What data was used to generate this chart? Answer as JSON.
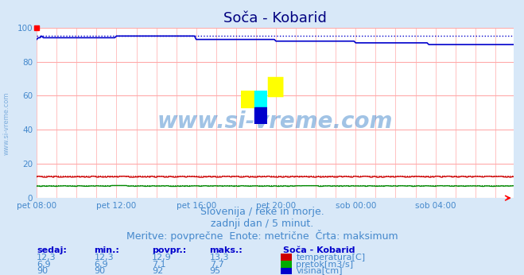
{
  "title": "Soča - Kobarid",
  "bg_color": "#d8e8f8",
  "plot_bg_color": "#ffffff",
  "grid_color_major": "#ffaaaa",
  "grid_color_minor": "#ffdddd",
  "xlim": [
    0,
    287
  ],
  "ylim": [
    0,
    100
  ],
  "yticks": [
    0,
    20,
    40,
    60,
    80,
    100
  ],
  "xtick_labels": [
    "pet 08:00",
    "pet 12:00",
    "pet 16:00",
    "pet 20:00",
    "sob 00:00",
    "sob 04:00"
  ],
  "xtick_positions": [
    0,
    48,
    96,
    144,
    192,
    240
  ],
  "title_color": "#000080",
  "title_fontsize": 13,
  "watermark_text": "www.si-vreme.com",
  "watermark_color": "#4488cc",
  "watermark_alpha": 0.5,
  "sub_text1": "Slovenija / reke in morje.",
  "sub_text2": "zadnji dan / 5 minut.",
  "sub_text3": "Meritve: povprečne  Enote: metrične  Črta: maksimum",
  "sub_text_color": "#4488cc",
  "sub_text_fontsize": 9,
  "legend_title": "Soča - Kobarid",
  "legend_items": [
    "temperatura[C]",
    "pretok[m3/s]",
    "višina[cm]"
  ],
  "legend_colors": [
    "#cc0000",
    "#00aa00",
    "#0000cc"
  ],
  "table_headers": [
    "sedaj:",
    "min.:",
    "povpr.:",
    "maks.:"
  ],
  "table_data": [
    [
      "12,3",
      "12,3",
      "12,9",
      "13,3"
    ],
    [
      "6,9",
      "6,9",
      "7,1",
      "7,7"
    ],
    [
      "90",
      "90",
      "92",
      "95"
    ]
  ],
  "temp_color": "#cc0000",
  "flow_color": "#008800",
  "height_color": "#0000cc",
  "temp_max_color": "#cc0000",
  "flow_max_color": "#008800",
  "height_max_color": "#0000cc",
  "n_points": 288,
  "temp_base": 12.3,
  "temp_max": 13.3,
  "flow_base": 6.9,
  "flow_max": 7.7,
  "height_profile": [
    93,
    94,
    94,
    95,
    94,
    94,
    94,
    94,
    94,
    94,
    94,
    94,
    94,
    94,
    94,
    94,
    94,
    94,
    94,
    94,
    94,
    94,
    94,
    94,
    94,
    94,
    94,
    94,
    94,
    94,
    94,
    94,
    94,
    94,
    94,
    94,
    94,
    94,
    94,
    94,
    94,
    94,
    94,
    94,
    94,
    94,
    94,
    94,
    95,
    95,
    95,
    95,
    95,
    95,
    95,
    95,
    95,
    95,
    95,
    95,
    95,
    95,
    95,
    95,
    95,
    95,
    95,
    95,
    95,
    95,
    95,
    95,
    95,
    95,
    95,
    95,
    95,
    95,
    95,
    95,
    95,
    95,
    95,
    95,
    95,
    95,
    95,
    95,
    95,
    95,
    95,
    95,
    95,
    95,
    95,
    95,
    93,
    93,
    93,
    93,
    93,
    93,
    93,
    93,
    93,
    93,
    93,
    93,
    93,
    93,
    93,
    93,
    93,
    93,
    93,
    93,
    93,
    93,
    93,
    93,
    93,
    93,
    93,
    93,
    93,
    93,
    93,
    93,
    93,
    93,
    93,
    93,
    93,
    93,
    93,
    93,
    93,
    93,
    93,
    93,
    93,
    93,
    93,
    93,
    92,
    92,
    92,
    92,
    92,
    92,
    92,
    92,
    92,
    92,
    92,
    92,
    92,
    92,
    92,
    92,
    92,
    92,
    92,
    92,
    92,
    92,
    92,
    92,
    92,
    92,
    92,
    92,
    92,
    92,
    92,
    92,
    92,
    92,
    92,
    92,
    92,
    92,
    92,
    92,
    92,
    92,
    92,
    92,
    92,
    92,
    92,
    92,
    91,
    91,
    91,
    91,
    91,
    91,
    91,
    91,
    91,
    91,
    91,
    91,
    91,
    91,
    91,
    91,
    91,
    91,
    91,
    91,
    91,
    91,
    91,
    91,
    91,
    91,
    91,
    91,
    91,
    91,
    91,
    91,
    91,
    91,
    91,
    91,
    91,
    91,
    91,
    91,
    91,
    91,
    91,
    91,
    90,
    90,
    90,
    90,
    90,
    90,
    90,
    90,
    90,
    90,
    90,
    90,
    90,
    90,
    90,
    90,
    90,
    90,
    90,
    90,
    90,
    90,
    90,
    90,
    90,
    90,
    90,
    90,
    90,
    90,
    90,
    90,
    90,
    90,
    90,
    90,
    90,
    90,
    90,
    90,
    90,
    90,
    90,
    90,
    90,
    90,
    90,
    90,
    90,
    90,
    90,
    90
  ],
  "height_max_val": 95
}
